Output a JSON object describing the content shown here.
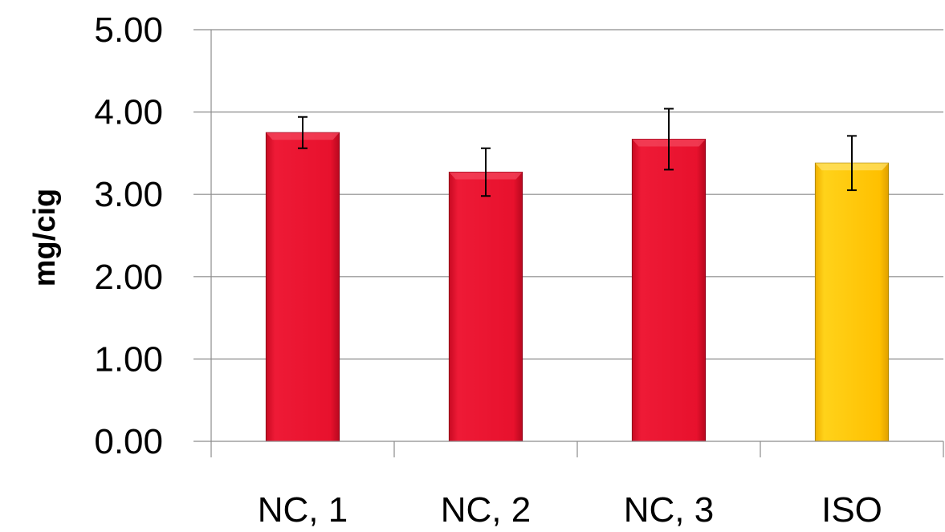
{
  "chart_data": {
    "type": "bar",
    "title": "",
    "xlabel": "",
    "ylabel": "mg/cig",
    "categories": [
      "NC, 1",
      "NC, 2",
      "NC, 3",
      "ISO"
    ],
    "values": [
      3.75,
      3.27,
      3.67,
      3.38
    ],
    "errors": [
      0.19,
      0.29,
      0.37,
      0.33
    ],
    "ylim": [
      0,
      5
    ],
    "yticks": [
      "0.00",
      "1.00",
      "2.00",
      "3.00",
      "4.00",
      "5.00"
    ],
    "grid": true,
    "colors": [
      "#e8112d",
      "#e8112d",
      "#e8112d",
      "#ffc000"
    ]
  }
}
